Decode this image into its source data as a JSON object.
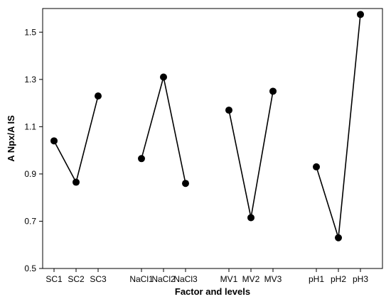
{
  "chart_data": {
    "type": "line",
    "title": "",
    "xlabel": "Factor and levels",
    "ylabel": "A Npx/A IS",
    "ylim": [
      0.5,
      1.6
    ],
    "yticks": [
      "0.5",
      "0.7",
      "0.9",
      "1.1",
      "1.3",
      "1.5"
    ],
    "grid": false,
    "legend": "none",
    "color": "#000000",
    "groups": [
      {
        "name": "SC",
        "categories": [
          "SC1",
          "SC2",
          "SC3"
        ],
        "values": [
          1.04,
          0.865,
          1.23
        ]
      },
      {
        "name": "NaCl",
        "categories": [
          "NaCl1",
          "NaCl2",
          "NaCl3"
        ],
        "values": [
          0.965,
          1.31,
          0.86
        ]
      },
      {
        "name": "MV",
        "categories": [
          "MV1",
          "MV2",
          "MV3"
        ],
        "values": [
          1.17,
          0.715,
          1.25
        ]
      },
      {
        "name": "pH",
        "categories": [
          "pH1",
          "pH2",
          "pH3"
        ],
        "values": [
          0.93,
          0.63,
          1.575
        ]
      }
    ]
  }
}
